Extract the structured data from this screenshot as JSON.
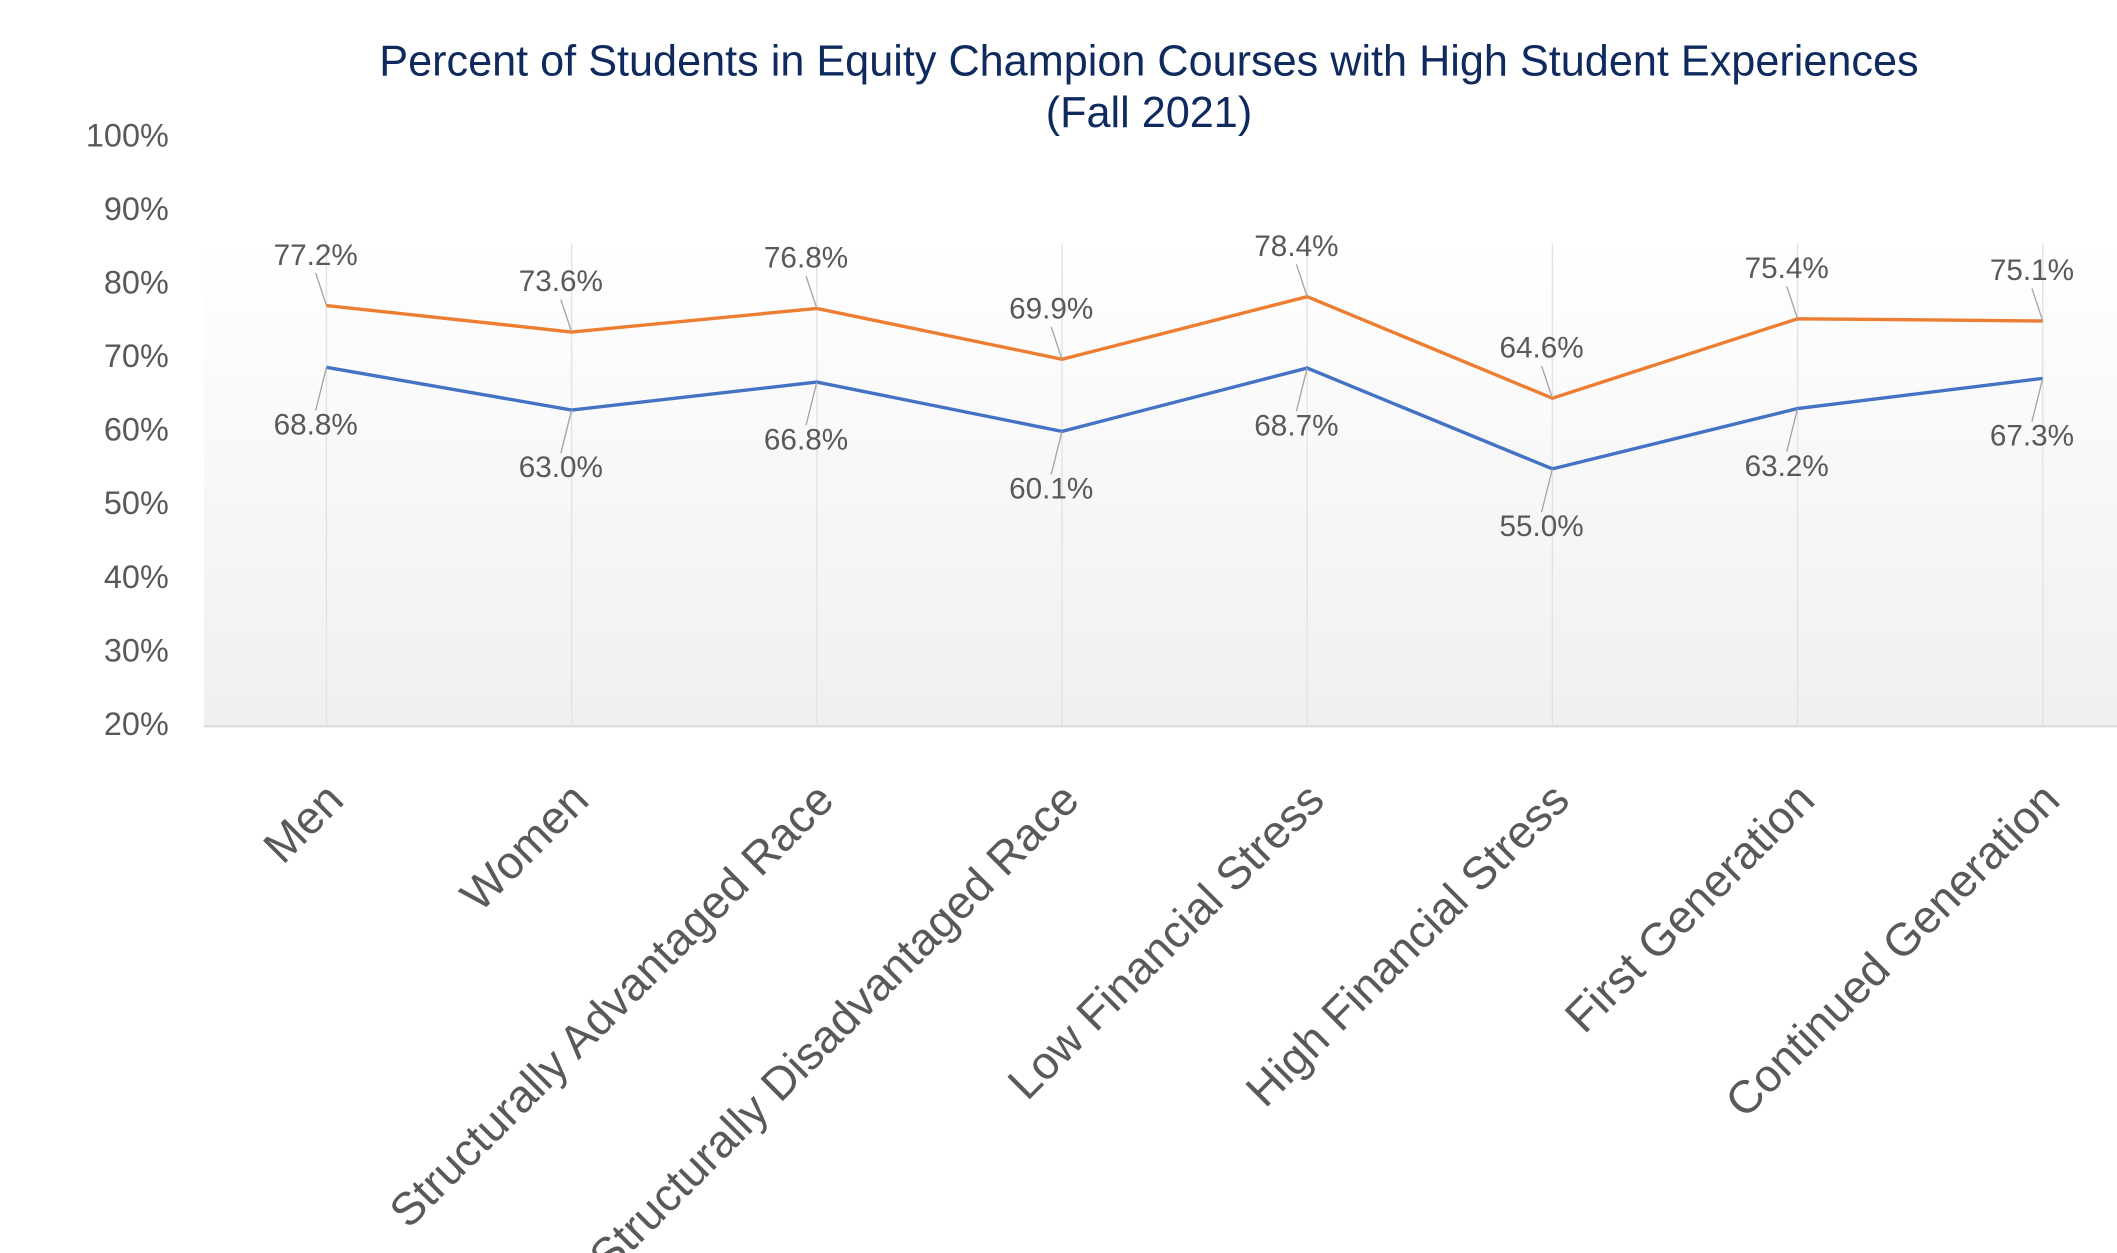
{
  "chart_data": {
    "type": "line",
    "title": "Percent of Students in Equity Champion Courses with High Student Experiences (Fall 2021)",
    "categories": [
      "Men",
      "Women",
      "Structurally Advantaged Race",
      "Structurally Disadvantaged Race",
      "Low Financial Stress",
      "High Financial Stress",
      "First Generation",
      "Continued Generation"
    ],
    "series": [
      {
        "color": "#ed7d31",
        "values": [
          77.2,
          73.6,
          76.8,
          69.9,
          78.4,
          64.6,
          75.4,
          75.1
        ],
        "value_labels": [
          "77.2%",
          "73.6%",
          "76.8%",
          "69.9%",
          "78.4%",
          "64.6%",
          "75.4%",
          "75.1%"
        ]
      },
      {
        "color": "#4472c4",
        "values": [
          68.8,
          63.0,
          66.8,
          60.1,
          68.7,
          55.0,
          63.2,
          67.3
        ],
        "value_labels": [
          "68.8%",
          "63.0%",
          "66.8%",
          "60.1%",
          "68.7%",
          "55.0%",
          "63.2%",
          "67.3%"
        ]
      }
    ],
    "ylim": [
      20,
      100
    ],
    "yticks": [
      {
        "value": 20,
        "label": "20%"
      },
      {
        "value": 30,
        "label": "30%"
      },
      {
        "value": 40,
        "label": "40%"
      },
      {
        "value": 50,
        "label": "50%"
      },
      {
        "value": 60,
        "label": "60%"
      },
      {
        "value": 70,
        "label": "70%"
      },
      {
        "value": 80,
        "label": "80%"
      },
      {
        "value": 90,
        "label": "90%"
      },
      {
        "value": 100,
        "label": "100%"
      }
    ],
    "grid": false
  }
}
